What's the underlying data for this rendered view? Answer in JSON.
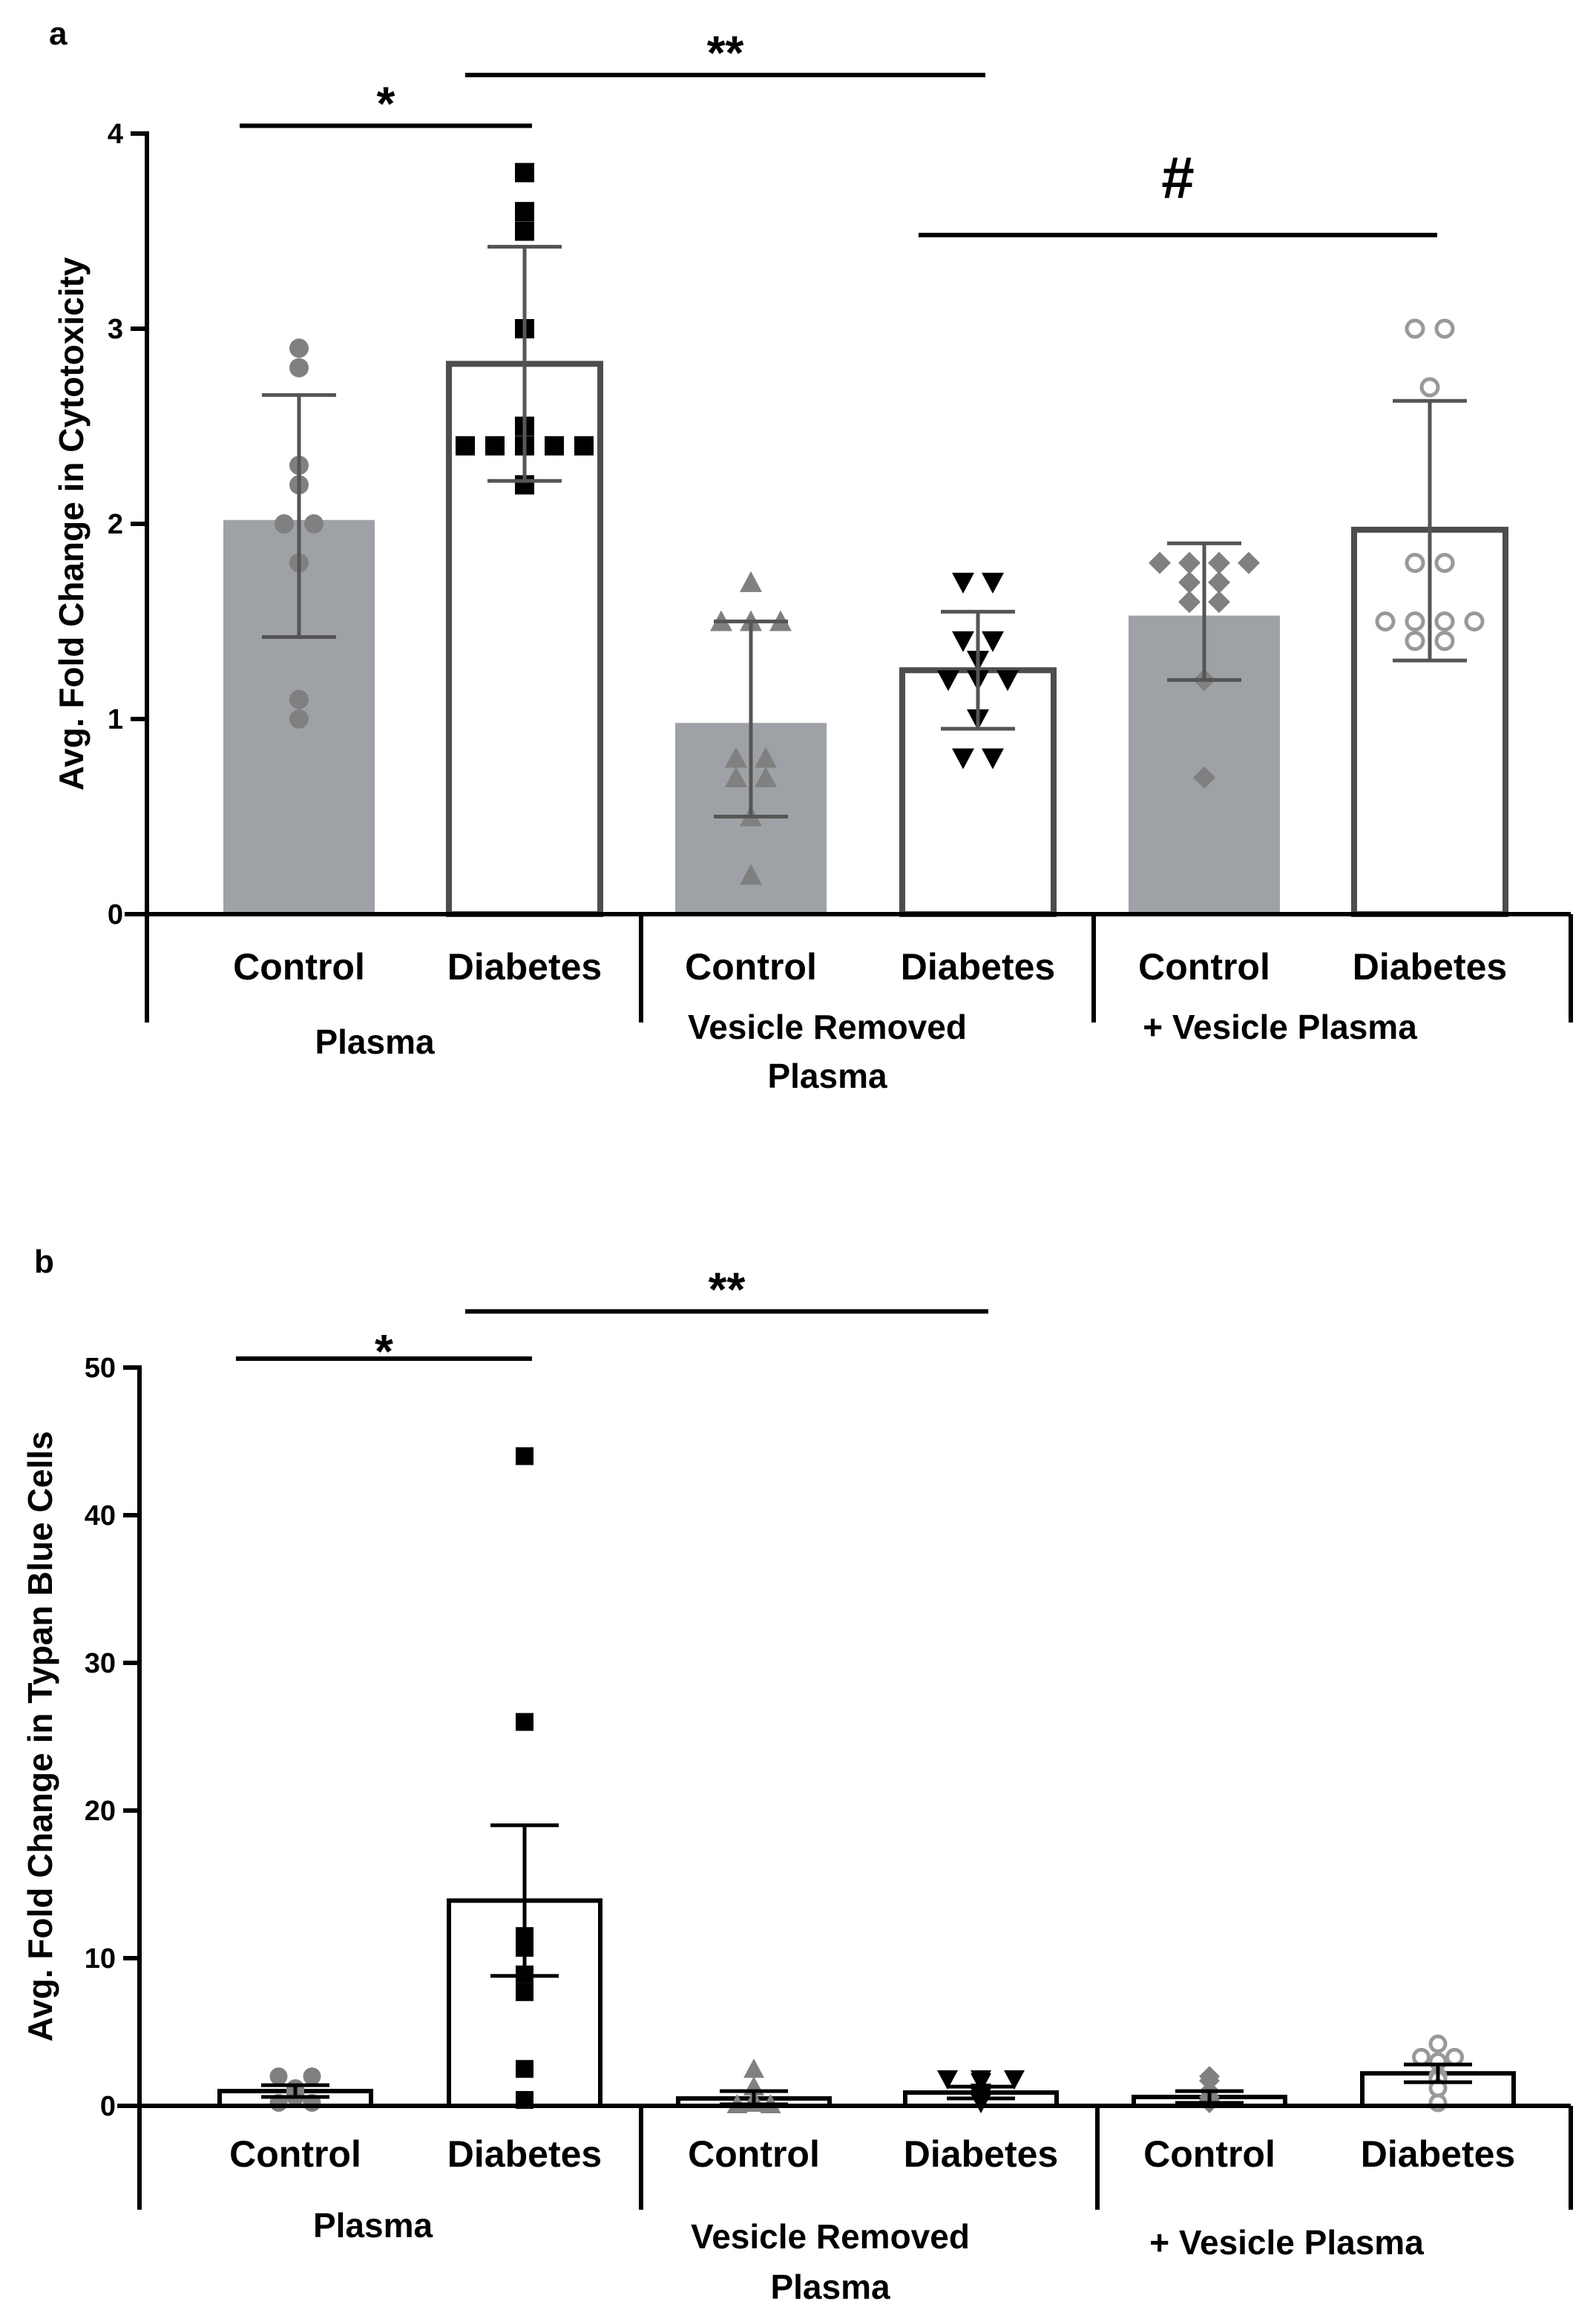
{
  "chart_data": [
    {
      "panel": "a",
      "type": "bar",
      "ylabel": "Avg. Fold Change in Cytotoxicity",
      "ylim": [
        0,
        4
      ],
      "yticks": [
        0,
        1,
        2,
        3,
        4
      ],
      "categories": [
        "Control",
        "Diabetes",
        "Control",
        "Diabetes",
        "Control",
        "Diabetes"
      ],
      "groups": [
        {
          "lines": [
            "Plasma"
          ]
        },
        {
          "lines": [
            "Vesicle Removed",
            "Plasma"
          ]
        },
        {
          "lines": [
            "+ Vesicle Plasma"
          ]
        }
      ],
      "bars": [
        {
          "mean": 2.02,
          "err_low": 1.42,
          "err_high": 2.66,
          "fill": "#9ea1a6",
          "stroke": "#9ea1a6",
          "marker": "circle",
          "marker_color": "#808080",
          "points": [
            2.9,
            2.8,
            2.2,
            2.3,
            2.0,
            2.0,
            1.8,
            1.1,
            1.0
          ]
        },
        {
          "mean": 2.82,
          "err_low": 2.22,
          "err_high": 3.42,
          "fill": "#ffffff",
          "stroke": "#4d4d4d",
          "marker": "square",
          "marker_color": "#000000",
          "points": [
            3.8,
            3.6,
            3.5,
            3.0,
            2.5,
            2.4,
            2.4,
            2.4,
            2.4,
            2.4,
            2.2
          ]
        },
        {
          "mean": 0.98,
          "err_low": 0.5,
          "err_high": 1.5,
          "fill": "#9ea1a6",
          "stroke": "#9ea1a6",
          "marker": "triangle",
          "marker_color": "#808080",
          "points": [
            1.7,
            1.5,
            1.5,
            1.5,
            0.8,
            0.8,
            0.7,
            0.7,
            0.5,
            0.2
          ]
        },
        {
          "mean": 1.25,
          "err_low": 0.95,
          "err_high": 1.55,
          "fill": "#ffffff",
          "stroke": "#4d4d4d",
          "marker": "triangle-down",
          "marker_color": "#000000",
          "points": [
            1.7,
            1.7,
            1.4,
            1.4,
            1.3,
            1.2,
            1.2,
            1.2,
            1.0,
            0.8,
            0.8
          ]
        },
        {
          "mean": 1.53,
          "err_low": 1.2,
          "err_high": 1.9,
          "fill": "#9ea1a6",
          "stroke": "#9ea1a6",
          "marker": "diamond",
          "marker_color": "#808080",
          "points": [
            1.8,
            1.8,
            1.8,
            1.8,
            1.7,
            1.7,
            1.6,
            1.6,
            1.2,
            0.7
          ]
        },
        {
          "mean": 1.97,
          "err_low": 1.3,
          "err_high": 2.63,
          "fill": "#ffffff",
          "stroke": "#4d4d4d",
          "marker": "circle-open",
          "marker_color": "#999999",
          "points": [
            3.0,
            3.0,
            2.7,
            1.8,
            1.8,
            1.5,
            1.5,
            1.5,
            1.5,
            1.4,
            1.4
          ]
        }
      ],
      "significance": [
        {
          "from": 0,
          "to": 1,
          "level": 4.04,
          "label": "*"
        },
        {
          "from": 1,
          "to": 3,
          "level": 4.3,
          "label": "**"
        },
        {
          "from": 3,
          "to": 5,
          "level": 3.48,
          "label": "#"
        }
      ]
    },
    {
      "panel": "b",
      "type": "bar",
      "ylabel": "Avg. Fold Change in Typan Blue Cells",
      "ylim": [
        0,
        50
      ],
      "yticks": [
        0,
        10,
        20,
        30,
        40,
        50
      ],
      "categories": [
        "Control",
        "Diabetes",
        "Control",
        "Diabetes",
        "Control",
        "Diabetes"
      ],
      "groups": [
        {
          "lines": [
            "Plasma"
          ]
        },
        {
          "lines": [
            "Vesicle Removed",
            "Plasma"
          ]
        },
        {
          "lines": [
            "+ Vesicle Plasma"
          ]
        }
      ],
      "bars": [
        {
          "mean": 1.0,
          "err_low": 0.6,
          "err_high": 1.4,
          "fill": "#ffffff",
          "stroke": "#000000",
          "marker": "circle",
          "marker_color": "#808080",
          "points": [
            2.0,
            2.0,
            1.2,
            1.0,
            0.8,
            0.6,
            0.2,
            0.2
          ]
        },
        {
          "mean": 13.9,
          "err_low": 8.8,
          "err_high": 19.0,
          "fill": "#ffffff",
          "stroke": "#000000",
          "marker": "square",
          "marker_color": "#000000",
          "points": [
            44.0,
            26.0,
            11.5,
            10.7,
            8.9,
            7.7,
            2.5,
            0.4
          ]
        },
        {
          "mean": 0.5,
          "err_low": 0.1,
          "err_high": 1.0,
          "fill": "#ffffff",
          "stroke": "#000000",
          "marker": "triangle",
          "marker_color": "#808080",
          "points": [
            2.5,
            1.3,
            0.4,
            0.2,
            0.1,
            0.1
          ]
        },
        {
          "mean": 0.9,
          "err_low": 0.5,
          "err_high": 1.3,
          "fill": "#ffffff",
          "stroke": "#000000",
          "marker": "triangle-down",
          "marker_color": "#000000",
          "points": [
            1.8,
            1.8,
            1.8,
            1.6,
            0.9,
            0.6,
            0.3,
            0.2
          ]
        },
        {
          "mean": 0.6,
          "err_low": 0.2,
          "err_high": 1.0,
          "fill": "#ffffff",
          "stroke": "#000000",
          "marker": "diamond",
          "marker_color": "#808080",
          "points": [
            2.0,
            1.7,
            1.0,
            0.6,
            0.4,
            0.3,
            0.2
          ]
        },
        {
          "mean": 2.2,
          "err_low": 1.6,
          "err_high": 2.8,
          "fill": "#ffffff",
          "stroke": "#000000",
          "marker": "circle-open",
          "marker_color": "#999999",
          "points": [
            4.2,
            3.3,
            3.3,
            3.0,
            2.0,
            1.8,
            1.2,
            0.2
          ]
        }
      ],
      "significance": [
        {
          "from": 0,
          "to": 1,
          "level": 50.6,
          "label": "*"
        },
        {
          "from": 1,
          "to": 3,
          "level": 53.8,
          "label": "**"
        }
      ]
    }
  ]
}
